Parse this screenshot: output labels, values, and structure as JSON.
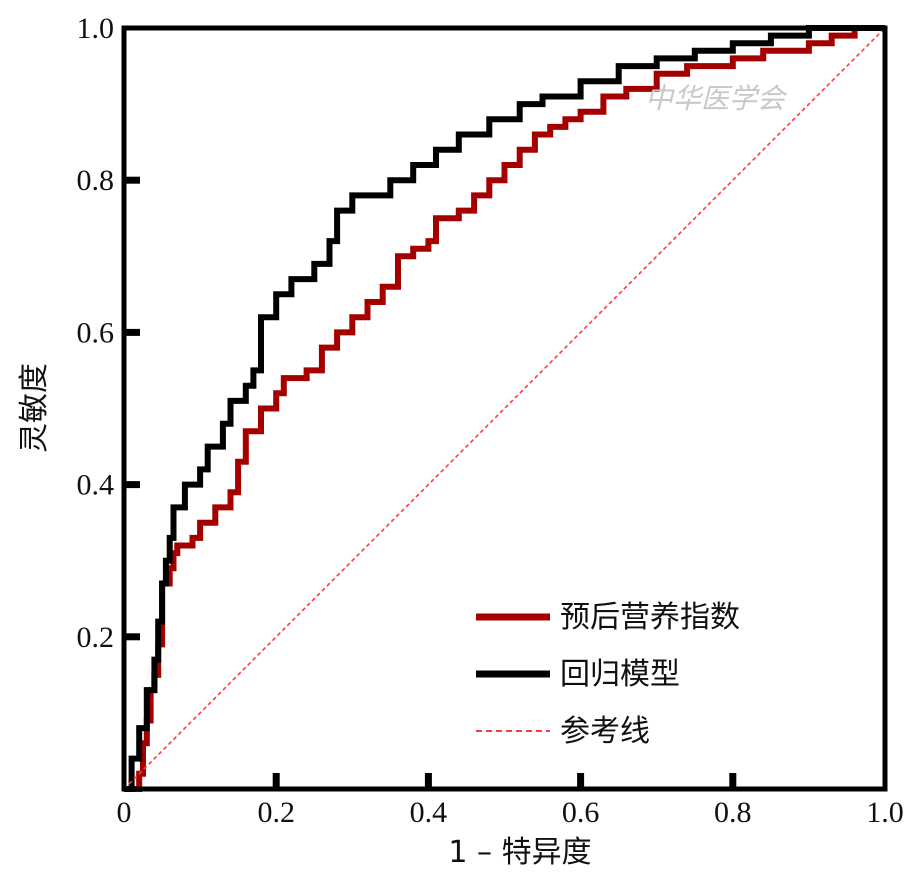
{
  "chart_data": {
    "type": "line",
    "title": "",
    "xlabel": "1 – 特异度",
    "ylabel": "灵敏度",
    "xlim": [
      0,
      1
    ],
    "ylim": [
      0,
      1
    ],
    "x_ticks": [
      0,
      0.2,
      0.4,
      0.6,
      0.8,
      1.0
    ],
    "x_tick_labels": [
      "0",
      "0.2",
      "0.4",
      "0.6",
      "0.8",
      "1.0"
    ],
    "y_ticks": [
      0.2,
      0.4,
      0.6,
      0.8,
      1.0
    ],
    "y_tick_labels": [
      "0.2",
      "0.4",
      "0.6",
      "0.8",
      "1.0"
    ],
    "grid": false,
    "legend_position": "bottom-right",
    "watermark": "中华医学会",
    "series": [
      {
        "name": "预后营养指数",
        "color": "#a50000",
        "style": "solid",
        "points": [
          [
            0,
            0
          ],
          [
            0.02,
            0.02
          ],
          [
            0.025,
            0.06
          ],
          [
            0.03,
            0.09
          ],
          [
            0.035,
            0.13
          ],
          [
            0.04,
            0.15
          ],
          [
            0.045,
            0.19
          ],
          [
            0.05,
            0.27
          ],
          [
            0.06,
            0.29
          ],
          [
            0.065,
            0.31
          ],
          [
            0.07,
            0.32
          ],
          [
            0.09,
            0.33
          ],
          [
            0.1,
            0.35
          ],
          [
            0.12,
            0.37
          ],
          [
            0.14,
            0.39
          ],
          [
            0.15,
            0.43
          ],
          [
            0.16,
            0.47
          ],
          [
            0.18,
            0.5
          ],
          [
            0.2,
            0.52
          ],
          [
            0.21,
            0.54
          ],
          [
            0.24,
            0.55
          ],
          [
            0.26,
            0.58
          ],
          [
            0.28,
            0.6
          ],
          [
            0.3,
            0.62
          ],
          [
            0.32,
            0.64
          ],
          [
            0.34,
            0.66
          ],
          [
            0.36,
            0.7
          ],
          [
            0.38,
            0.71
          ],
          [
            0.4,
            0.72
          ],
          [
            0.41,
            0.75
          ],
          [
            0.44,
            0.76
          ],
          [
            0.46,
            0.78
          ],
          [
            0.48,
            0.8
          ],
          [
            0.5,
            0.82
          ],
          [
            0.52,
            0.84
          ],
          [
            0.54,
            0.86
          ],
          [
            0.56,
            0.87
          ],
          [
            0.58,
            0.88
          ],
          [
            0.6,
            0.89
          ],
          [
            0.63,
            0.91
          ],
          [
            0.66,
            0.92
          ],
          [
            0.7,
            0.94
          ],
          [
            0.74,
            0.95
          ],
          [
            0.8,
            0.96
          ],
          [
            0.84,
            0.97
          ],
          [
            0.9,
            0.98
          ],
          [
            0.93,
            0.99
          ],
          [
            0.96,
            1.0
          ],
          [
            1.0,
            1.0
          ]
        ]
      },
      {
        "name": "回归模型",
        "color": "#000000",
        "style": "solid",
        "points": [
          [
            0,
            0
          ],
          [
            0.01,
            0.04
          ],
          [
            0.02,
            0.08
          ],
          [
            0.03,
            0.13
          ],
          [
            0.04,
            0.17
          ],
          [
            0.045,
            0.22
          ],
          [
            0.05,
            0.27
          ],
          [
            0.055,
            0.3
          ],
          [
            0.06,
            0.33
          ],
          [
            0.065,
            0.37
          ],
          [
            0.08,
            0.4
          ],
          [
            0.1,
            0.42
          ],
          [
            0.11,
            0.45
          ],
          [
            0.13,
            0.48
          ],
          [
            0.14,
            0.51
          ],
          [
            0.16,
            0.53
          ],
          [
            0.17,
            0.55
          ],
          [
            0.18,
            0.62
          ],
          [
            0.2,
            0.65
          ],
          [
            0.22,
            0.67
          ],
          [
            0.25,
            0.69
          ],
          [
            0.27,
            0.72
          ],
          [
            0.28,
            0.76
          ],
          [
            0.3,
            0.78
          ],
          [
            0.35,
            0.8
          ],
          [
            0.38,
            0.82
          ],
          [
            0.41,
            0.84
          ],
          [
            0.44,
            0.86
          ],
          [
            0.48,
            0.88
          ],
          [
            0.52,
            0.9
          ],
          [
            0.55,
            0.91
          ],
          [
            0.6,
            0.93
          ],
          [
            0.65,
            0.95
          ],
          [
            0.7,
            0.96
          ],
          [
            0.75,
            0.97
          ],
          [
            0.8,
            0.98
          ],
          [
            0.85,
            0.99
          ],
          [
            0.9,
            1.0
          ],
          [
            1.0,
            1.0
          ]
        ]
      },
      {
        "name": "参考线",
        "color": "#ff3a3a",
        "style": "dashed",
        "points": [
          [
            0,
            0
          ],
          [
            1,
            1
          ]
        ]
      }
    ]
  }
}
